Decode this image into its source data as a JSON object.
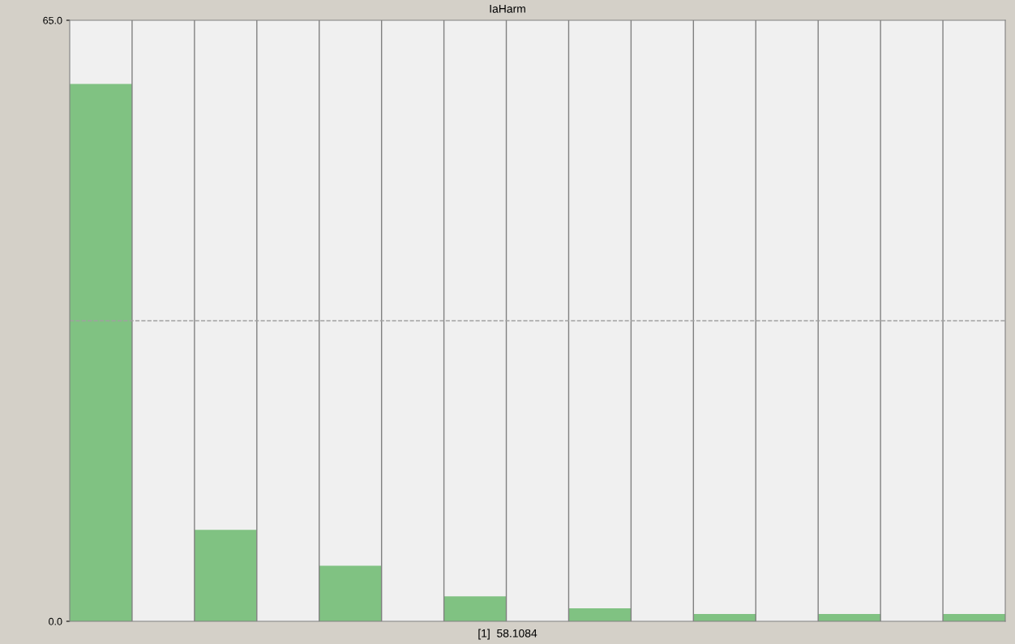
{
  "chart_data": {
    "type": "bar",
    "title": "IaHarm",
    "categories": [
      null,
      null,
      null,
      null,
      null,
      null,
      null,
      null,
      null,
      null,
      null,
      null,
      null,
      null,
      null
    ],
    "values": [
      58.1084,
      0,
      9.9,
      0,
      6.0,
      0,
      2.7,
      0,
      1.4,
      0,
      0.8,
      0,
      0.8,
      0,
      0.8
    ],
    "color": "#80c282",
    "ylim": [
      0,
      65
    ],
    "yticks": [
      {
        "value": 0,
        "label": "0.0"
      },
      {
        "value": 65,
        "label": "65.0"
      }
    ],
    "ref_lines": [
      {
        "axis": "y",
        "value": 32.5,
        "color": "#a0a0a0",
        "line_style": "dashed"
      }
    ],
    "annotations": [
      "[1]  58.1084"
    ],
    "grid": false
  }
}
